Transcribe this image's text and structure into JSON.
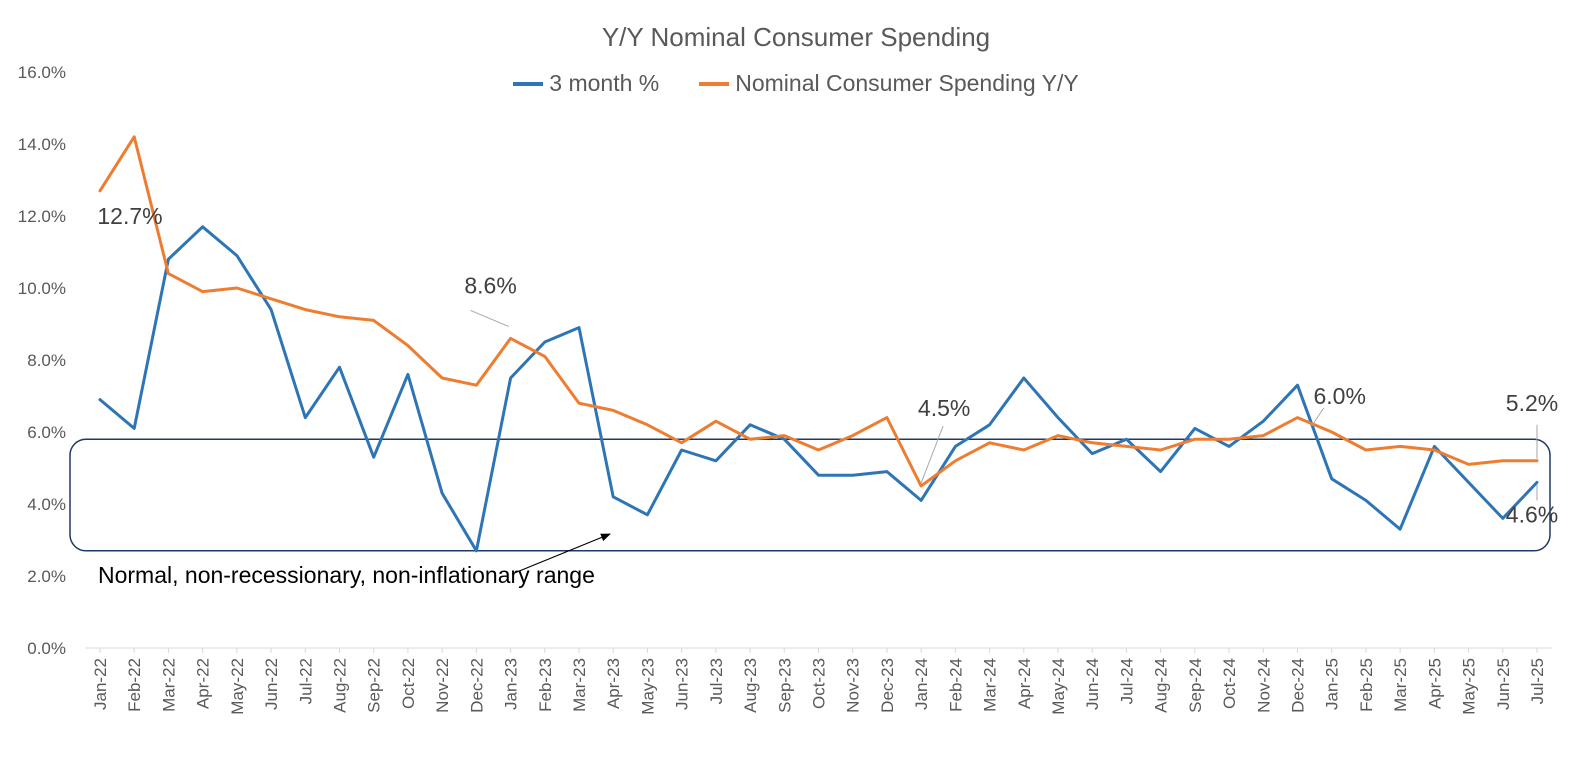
{
  "chart_data": {
    "type": "line",
    "title": "Y/Y Nominal Consumer Spending",
    "xlabel": "",
    "ylabel": "",
    "ylim": [
      0,
      16
    ],
    "y_ticks": [
      "0.0%",
      "2.0%",
      "4.0%",
      "6.0%",
      "8.0%",
      "10.0%",
      "12.0%",
      "14.0%",
      "16.0%"
    ],
    "categories": [
      "Jan-22",
      "Feb-22",
      "Mar-22",
      "Apr-22",
      "May-22",
      "Jun-22",
      "Jul-22",
      "Aug-22",
      "Sep-22",
      "Oct-22",
      "Nov-22",
      "Dec-22",
      "Jan-23",
      "Feb-23",
      "Mar-23",
      "Apr-23",
      "May-23",
      "Jun-23",
      "Jul-23",
      "Aug-23",
      "Sep-23",
      "Oct-23",
      "Nov-23",
      "Dec-23",
      "Jan-24",
      "Feb-24",
      "Mar-24",
      "Apr-24",
      "May-24",
      "Jun-24",
      "Jul-24",
      "Aug-24",
      "Sep-24",
      "Oct-24",
      "Nov-24",
      "Dec-24",
      "Jan-25",
      "Feb-25",
      "Mar-25",
      "Apr-25",
      "May-25",
      "Jun-25",
      "Jul-25"
    ],
    "series": [
      {
        "name": "3 month %",
        "color": "#2E75B6",
        "values": [
          6.9,
          6.1,
          10.8,
          11.7,
          10.9,
          9.4,
          6.4,
          7.8,
          5.3,
          7.6,
          4.3,
          2.7,
          7.5,
          8.5,
          8.9,
          4.2,
          3.7,
          5.5,
          5.2,
          6.2,
          5.8,
          4.8,
          4.8,
          4.9,
          4.1,
          5.6,
          6.2,
          7.5,
          6.4,
          5.4,
          5.8,
          4.9,
          6.1,
          5.6,
          6.3,
          7.3,
          4.7,
          4.1,
          3.3,
          5.6,
          4.6,
          3.6,
          4.6
        ]
      },
      {
        "name": "Nominal Consumer Spending Y/Y",
        "color": "#ED7D31",
        "values": [
          12.7,
          14.2,
          10.4,
          9.9,
          10.0,
          9.7,
          9.4,
          9.2,
          9.1,
          8.4,
          7.5,
          7.3,
          8.6,
          8.1,
          6.8,
          6.6,
          6.2,
          5.7,
          6.3,
          5.8,
          5.9,
          5.5,
          5.9,
          6.4,
          4.5,
          5.2,
          5.7,
          5.5,
          5.9,
          5.7,
          5.6,
          5.5,
          5.8,
          5.8,
          5.9,
          6.4,
          6.0,
          5.5,
          5.6,
          5.5,
          5.1,
          5.2,
          5.2
        ]
      }
    ],
    "annotations": [
      {
        "text": "12.7%",
        "series": 1,
        "index": 0
      },
      {
        "text": "8.6%",
        "series": 1,
        "index": 12
      },
      {
        "text": "4.5%",
        "series": 1,
        "index": 24
      },
      {
        "text": "6.0%",
        "series": 1,
        "index": 36
      },
      {
        "text": "5.2%",
        "series": 1,
        "index": 42
      },
      {
        "text": "4.6%",
        "series": 0,
        "index": 42
      }
    ],
    "range_box": {
      "label": "Normal, non-recessionary, non-inflationary range",
      "y_range": [
        2.7,
        5.8
      ],
      "color": "#1F3864"
    }
  }
}
